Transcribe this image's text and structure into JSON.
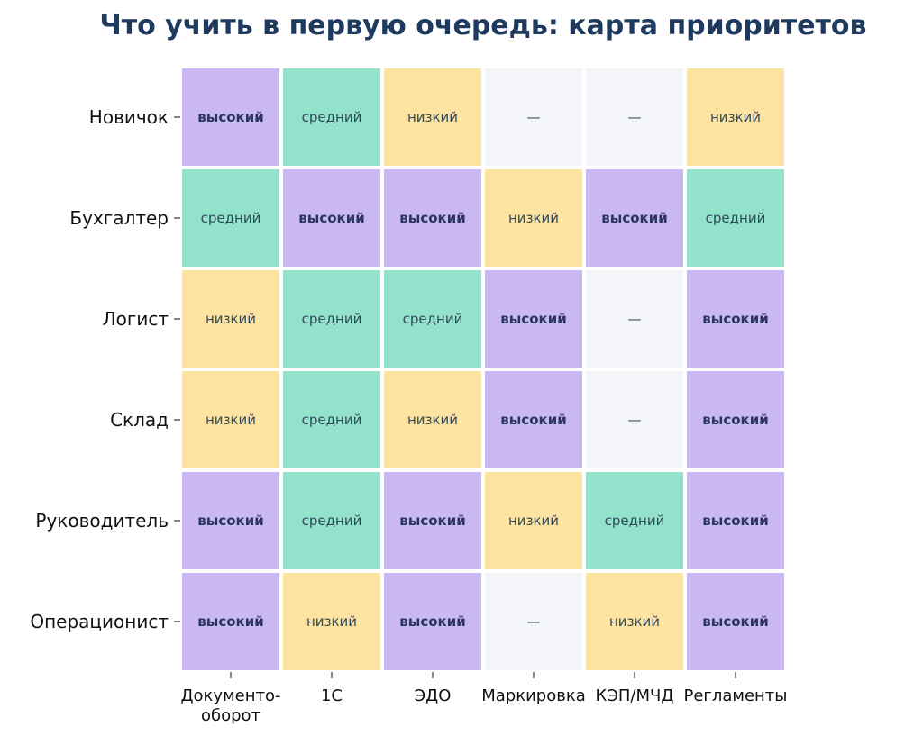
{
  "chart_data": {
    "type": "heatmap",
    "title": "Что учить в первую очередь: карта приоритетов",
    "rows": [
      "Новичок",
      "Бухгалтер",
      "Логист",
      "Склад",
      "Руководитель",
      "Операционист"
    ],
    "columns": [
      [
        "Документо-",
        "оборот"
      ],
      [
        "1С"
      ],
      [
        "ЭДО"
      ],
      [
        "Маркировка"
      ],
      [
        "КЭП/МЧД"
      ],
      [
        "Регламенты"
      ]
    ],
    "values": [
      [
        "высокий",
        "средний",
        "низкий",
        "—",
        "—",
        "низкий"
      ],
      [
        "средний",
        "высокий",
        "высокий",
        "низкий",
        "высокий",
        "средний"
      ],
      [
        "низкий",
        "средний",
        "средний",
        "высокий",
        "—",
        "высокий"
      ],
      [
        "низкий",
        "средний",
        "низкий",
        "высокий",
        "—",
        "высокий"
      ],
      [
        "высокий",
        "средний",
        "высокий",
        "низкий",
        "средний",
        "высокий"
      ],
      [
        "высокий",
        "низкий",
        "высокий",
        "—",
        "низкий",
        "высокий"
      ]
    ],
    "colors": {
      "высокий": "#c9b8f2",
      "средний": "#93e3cc",
      "низкий": "#fde3a2",
      "—": "#f4f5f9"
    },
    "bold_levels": [
      "высокий"
    ]
  }
}
